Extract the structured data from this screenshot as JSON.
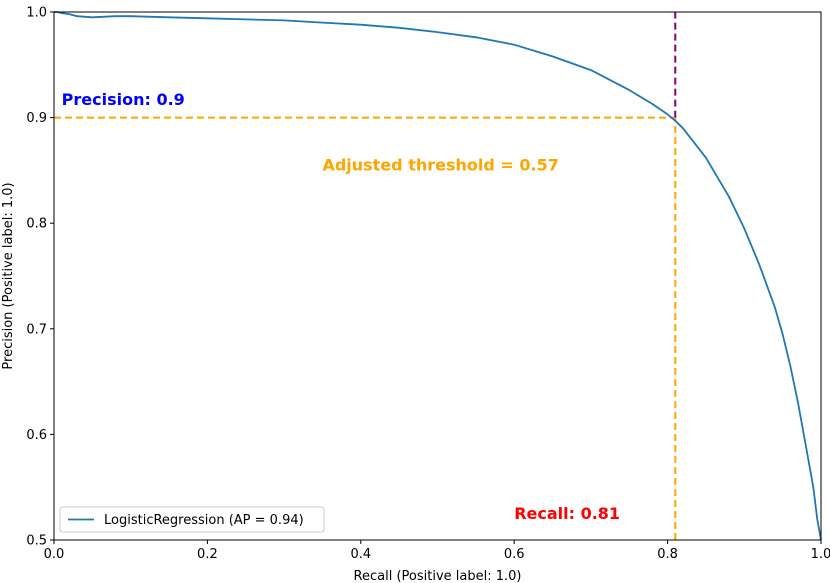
{
  "chart_data": {
    "type": "line",
    "xlabel": "Recall (Positive label: 1.0)",
    "ylabel": "Precision (Positive label: 1.0)",
    "xlim": [
      0.0,
      1.0
    ],
    "ylim": [
      0.5,
      1.0
    ],
    "xticks": [
      0.0,
      0.2,
      0.4,
      0.6,
      0.8,
      1.0
    ],
    "xtick_labels": [
      "0.0",
      "0.2",
      "0.4",
      "0.6",
      "0.8",
      "1.0"
    ],
    "yticks": [
      0.5,
      0.6,
      0.7,
      0.8,
      0.9,
      1.0
    ],
    "ytick_labels": [
      "0.5",
      "0.6",
      "0.7",
      "0.8",
      "0.9",
      "1.0"
    ],
    "grid": false,
    "legend": {
      "placement": "lower-left",
      "entries": [
        "LogisticRegression (AP = 0.94)"
      ]
    },
    "series": [
      {
        "name": "LogisticRegression (AP = 0.94)",
        "color": "#1f77b4",
        "x": [
          0.0,
          0.005,
          0.01,
          0.02,
          0.03,
          0.05,
          0.08,
          0.1,
          0.15,
          0.2,
          0.25,
          0.3,
          0.35,
          0.4,
          0.45,
          0.5,
          0.55,
          0.6,
          0.65,
          0.7,
          0.75,
          0.78,
          0.8,
          0.81,
          0.82,
          0.85,
          0.88,
          0.9,
          0.92,
          0.94,
          0.95,
          0.96,
          0.97,
          0.98,
          0.99,
          0.995,
          1.0
        ],
        "y": [
          1.0,
          1.0,
          0.999,
          0.998,
          0.996,
          0.995,
          0.996,
          0.996,
          0.995,
          0.994,
          0.993,
          0.992,
          0.99,
          0.988,
          0.985,
          0.981,
          0.976,
          0.969,
          0.958,
          0.945,
          0.926,
          0.913,
          0.903,
          0.897,
          0.89,
          0.862,
          0.825,
          0.795,
          0.76,
          0.72,
          0.695,
          0.665,
          0.63,
          0.59,
          0.55,
          0.52,
          0.5
        ]
      }
    ],
    "reference_lines": [
      {
        "orientation": "horizontal",
        "y": 0.9,
        "x_from": 0.0,
        "x_to": 0.81,
        "color": "#ffa500",
        "style": "dashed"
      },
      {
        "orientation": "vertical",
        "x": 0.81,
        "y_from": 0.5,
        "y_to": 0.9,
        "color": "#ffa500",
        "style": "dashed"
      },
      {
        "orientation": "vertical",
        "x": 0.81,
        "y_from": 0.9,
        "y_to": 1.0,
        "color": "#800080",
        "style": "dashed"
      }
    ],
    "annotations": [
      {
        "text": "Precision: 0.9",
        "x": 0.01,
        "y": 0.912,
        "color": "#0000ff"
      },
      {
        "text": "Adjusted threshold = 0.57",
        "x": 0.35,
        "y": 0.85,
        "color": "#ffa500"
      },
      {
        "text": "Recall: 0.81",
        "x": 0.6,
        "y": 0.52,
        "color": "#ff0000"
      }
    ]
  }
}
